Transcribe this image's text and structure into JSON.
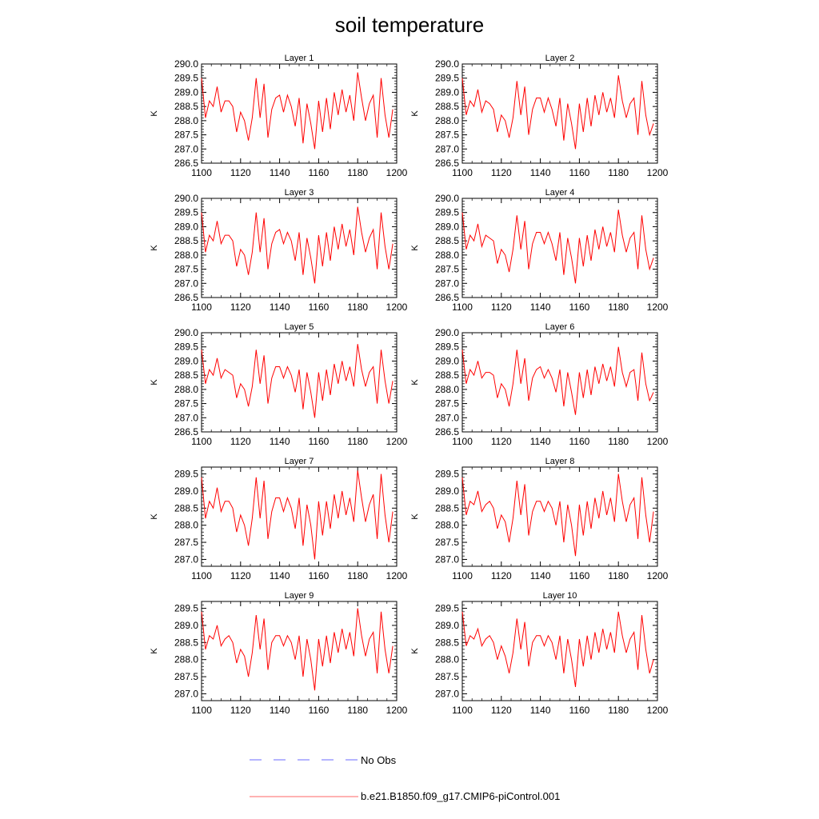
{
  "title": "soil temperature",
  "legend": [
    {
      "label": "No Obs",
      "color": "#6b6bff",
      "style": "dashed"
    },
    {
      "label": "b.e21.B1850.f09_g17.CMIP6-piControl.001",
      "color": "#ff6666",
      "style": "solid"
    }
  ],
  "chart_data": {
    "type": "line",
    "title": "soil temperature",
    "x": [
      1100,
      1102,
      1104,
      1106,
      1108,
      1110,
      1112,
      1114,
      1116,
      1118,
      1120,
      1122,
      1124,
      1126,
      1128,
      1130,
      1132,
      1134,
      1136,
      1138,
      1140,
      1142,
      1144,
      1146,
      1148,
      1150,
      1152,
      1154,
      1156,
      1158,
      1160,
      1162,
      1164,
      1166,
      1168,
      1170,
      1172,
      1174,
      1176,
      1178,
      1180,
      1182,
      1184,
      1186,
      1188,
      1190,
      1192,
      1194,
      1196,
      1198
    ],
    "xlim": [
      1100,
      1200
    ],
    "xticks": [
      1100,
      1120,
      1140,
      1160,
      1180,
      1200
    ],
    "series_name": "b.e21.B1850.f09_g17.CMIP6-piControl.001",
    "panels": [
      {
        "title": "Layer 1",
        "ylabel": "K",
        "ylim": [
          286.5,
          290.0
        ],
        "yticks": [
          "290.0",
          "289.5",
          "289.0",
          "288.5",
          "288.0",
          "287.5",
          "287.0",
          "286.5"
        ],
        "values": [
          289.5,
          288.1,
          288.7,
          288.5,
          289.2,
          288.3,
          288.7,
          288.7,
          288.5,
          287.6,
          288.3,
          288.0,
          287.3,
          288.1,
          289.5,
          288.1,
          289.3,
          287.4,
          288.4,
          288.8,
          288.9,
          288.3,
          288.9,
          288.5,
          287.8,
          288.8,
          287.2,
          288.6,
          287.9,
          287.0,
          288.7,
          287.6,
          288.8,
          287.7,
          289.0,
          288.2,
          289.1,
          288.3,
          288.9,
          288.0,
          289.7,
          288.8,
          288.0,
          288.6,
          288.9,
          287.4,
          289.5,
          288.2,
          287.4,
          288.4
        ]
      },
      {
        "title": "Layer 2",
        "ylabel": "K",
        "ylim": [
          286.5,
          290.0
        ],
        "yticks": [
          "290.0",
          "289.5",
          "289.0",
          "288.5",
          "288.0",
          "287.5",
          "287.0",
          "286.5"
        ],
        "values": [
          289.5,
          288.2,
          288.7,
          288.5,
          289.1,
          288.3,
          288.7,
          288.6,
          288.4,
          287.6,
          288.2,
          288.0,
          287.4,
          288.1,
          289.4,
          288.2,
          289.2,
          287.5,
          288.4,
          288.8,
          288.8,
          288.3,
          288.8,
          288.4,
          287.8,
          288.8,
          287.3,
          288.6,
          287.9,
          287.0,
          288.6,
          287.6,
          288.8,
          287.8,
          288.9,
          288.2,
          289.0,
          288.3,
          288.8,
          288.1,
          289.6,
          288.7,
          288.1,
          288.6,
          288.8,
          287.5,
          289.4,
          288.2,
          287.5,
          287.9
        ]
      },
      {
        "title": "Layer 3",
        "ylabel": "K",
        "ylim": [
          286.5,
          290.0
        ],
        "yticks": [
          "290.0",
          "289.5",
          "289.0",
          "288.5",
          "288.0",
          "287.5",
          "287.0",
          "286.5"
        ],
        "values": [
          289.5,
          288.1,
          288.7,
          288.5,
          289.2,
          288.4,
          288.7,
          288.7,
          288.5,
          287.6,
          288.2,
          288.0,
          287.3,
          288.1,
          289.5,
          288.1,
          289.3,
          287.5,
          288.4,
          288.8,
          288.9,
          288.4,
          288.8,
          288.5,
          287.8,
          288.8,
          287.3,
          288.6,
          287.9,
          287.0,
          288.7,
          287.6,
          288.8,
          287.8,
          289.0,
          288.2,
          289.1,
          288.3,
          288.9,
          288.0,
          289.7,
          288.8,
          288.1,
          288.6,
          288.9,
          287.5,
          289.5,
          288.3,
          287.5,
          288.4
        ]
      },
      {
        "title": "Layer 4",
        "ylabel": "K",
        "ylim": [
          286.5,
          290.0
        ],
        "yticks": [
          "290.0",
          "289.5",
          "289.0",
          "288.5",
          "288.0",
          "287.5",
          "287.0",
          "286.5"
        ],
        "values": [
          289.5,
          288.2,
          288.7,
          288.5,
          289.1,
          288.3,
          288.7,
          288.6,
          288.5,
          287.7,
          288.2,
          288.0,
          287.4,
          288.2,
          289.4,
          288.2,
          289.2,
          287.5,
          288.4,
          288.8,
          288.8,
          288.4,
          288.8,
          288.4,
          287.8,
          288.8,
          287.3,
          288.6,
          287.9,
          287.0,
          288.6,
          287.6,
          288.7,
          287.8,
          288.9,
          288.2,
          289.0,
          288.3,
          288.8,
          288.1,
          289.6,
          288.7,
          288.1,
          288.6,
          288.8,
          287.5,
          289.4,
          288.2,
          287.5,
          287.9
        ]
      },
      {
        "title": "Layer 5",
        "ylabel": "K",
        "ylim": [
          286.5,
          290.0
        ],
        "yticks": [
          "290.0",
          "289.5",
          "289.0",
          "288.5",
          "288.0",
          "287.5",
          "287.0",
          "286.5"
        ],
        "values": [
          289.4,
          288.2,
          288.7,
          288.5,
          289.1,
          288.4,
          288.7,
          288.6,
          288.5,
          287.7,
          288.2,
          288.0,
          287.4,
          288.1,
          289.4,
          288.2,
          289.2,
          287.5,
          288.4,
          288.8,
          288.8,
          288.4,
          288.8,
          288.5,
          287.9,
          288.7,
          287.3,
          288.6,
          287.9,
          287.0,
          288.6,
          287.6,
          288.7,
          287.8,
          288.9,
          288.2,
          289.0,
          288.3,
          288.8,
          288.1,
          289.6,
          288.7,
          288.1,
          288.6,
          288.8,
          287.5,
          289.4,
          288.3,
          287.5,
          288.3
        ]
      },
      {
        "title": "Layer 6",
        "ylabel": "K",
        "ylim": [
          286.5,
          290.0
        ],
        "yticks": [
          "290.0",
          "289.5",
          "289.0",
          "288.5",
          "288.0",
          "287.5",
          "287.0",
          "286.5"
        ],
        "values": [
          289.4,
          288.2,
          288.7,
          288.5,
          289.0,
          288.4,
          288.6,
          288.6,
          288.5,
          287.7,
          288.2,
          288.0,
          287.4,
          288.2,
          289.4,
          288.2,
          289.1,
          287.6,
          288.4,
          288.7,
          288.8,
          288.4,
          288.7,
          288.4,
          287.9,
          288.7,
          287.4,
          288.6,
          287.9,
          287.1,
          288.6,
          287.7,
          288.7,
          287.8,
          288.8,
          288.2,
          288.9,
          288.3,
          288.8,
          288.1,
          289.5,
          288.6,
          288.1,
          288.6,
          288.7,
          287.6,
          289.3,
          288.2,
          287.6,
          287.9
        ]
      },
      {
        "title": "Layer 7",
        "ylabel": "K",
        "ylim": [
          286.8,
          289.7
        ],
        "yticks": [
          "289.5",
          "289.0",
          "288.5",
          "288.0",
          "287.5",
          "287.0"
        ],
        "values": [
          289.4,
          288.2,
          288.7,
          288.5,
          289.1,
          288.4,
          288.7,
          288.7,
          288.5,
          287.8,
          288.3,
          288.0,
          287.4,
          288.2,
          289.4,
          288.2,
          289.3,
          287.6,
          288.4,
          288.8,
          288.8,
          288.4,
          288.8,
          288.5,
          287.9,
          288.8,
          287.4,
          288.6,
          288.0,
          287.0,
          288.7,
          287.7,
          288.7,
          287.9,
          288.9,
          288.2,
          289.0,
          288.3,
          288.8,
          288.1,
          289.6,
          288.8,
          288.1,
          288.6,
          288.9,
          287.6,
          289.5,
          288.3,
          287.5,
          288.4
        ]
      },
      {
        "title": "Layer 8",
        "ylabel": "K",
        "ylim": [
          286.8,
          289.7
        ],
        "yticks": [
          "289.5",
          "289.0",
          "288.5",
          "288.0",
          "287.5",
          "287.0"
        ],
        "values": [
          289.4,
          288.3,
          288.7,
          288.6,
          289.0,
          288.4,
          288.6,
          288.7,
          288.5,
          287.9,
          288.3,
          288.1,
          287.5,
          288.2,
          289.3,
          288.3,
          289.2,
          287.7,
          288.4,
          288.7,
          288.7,
          288.4,
          288.7,
          288.5,
          288.0,
          288.7,
          287.5,
          288.6,
          288.0,
          287.1,
          288.6,
          287.7,
          288.7,
          287.9,
          288.8,
          288.2,
          289.0,
          288.3,
          288.8,
          288.1,
          289.5,
          288.7,
          288.1,
          288.6,
          288.8,
          287.6,
          289.4,
          288.3,
          287.5,
          288.4
        ]
      },
      {
        "title": "Layer 9",
        "ylabel": "K",
        "ylim": [
          286.8,
          289.7
        ],
        "yticks": [
          "289.5",
          "289.0",
          "288.5",
          "288.0",
          "287.5",
          "287.0"
        ],
        "values": [
          289.4,
          288.3,
          288.7,
          288.6,
          289.0,
          288.4,
          288.6,
          288.7,
          288.5,
          287.9,
          288.3,
          288.1,
          287.5,
          288.2,
          289.3,
          288.3,
          289.2,
          287.7,
          288.5,
          288.7,
          288.7,
          288.4,
          288.7,
          288.5,
          288.0,
          288.7,
          287.5,
          288.6,
          288.0,
          287.1,
          288.6,
          287.8,
          288.7,
          287.9,
          288.8,
          288.2,
          288.9,
          288.3,
          288.8,
          288.1,
          289.5,
          288.7,
          288.1,
          288.6,
          288.8,
          287.6,
          289.4,
          288.3,
          287.6,
          288.4
        ]
      },
      {
        "title": "Layer 10",
        "ylabel": "K",
        "ylim": [
          286.8,
          289.7
        ],
        "yticks": [
          "289.5",
          "289.0",
          "288.5",
          "288.0",
          "287.5",
          "287.0"
        ],
        "values": [
          289.4,
          288.4,
          288.7,
          288.6,
          288.9,
          288.4,
          288.6,
          288.7,
          288.5,
          288.0,
          288.4,
          288.1,
          287.6,
          288.2,
          289.2,
          288.3,
          289.1,
          287.8,
          288.5,
          288.7,
          288.7,
          288.4,
          288.7,
          288.5,
          288.0,
          288.7,
          287.6,
          288.6,
          288.0,
          287.2,
          288.6,
          287.8,
          288.7,
          288.0,
          288.8,
          288.2,
          288.9,
          288.3,
          288.8,
          288.2,
          289.4,
          288.7,
          288.2,
          288.6,
          288.8,
          287.7,
          289.3,
          288.3,
          287.6,
          288.0
        ]
      }
    ]
  }
}
